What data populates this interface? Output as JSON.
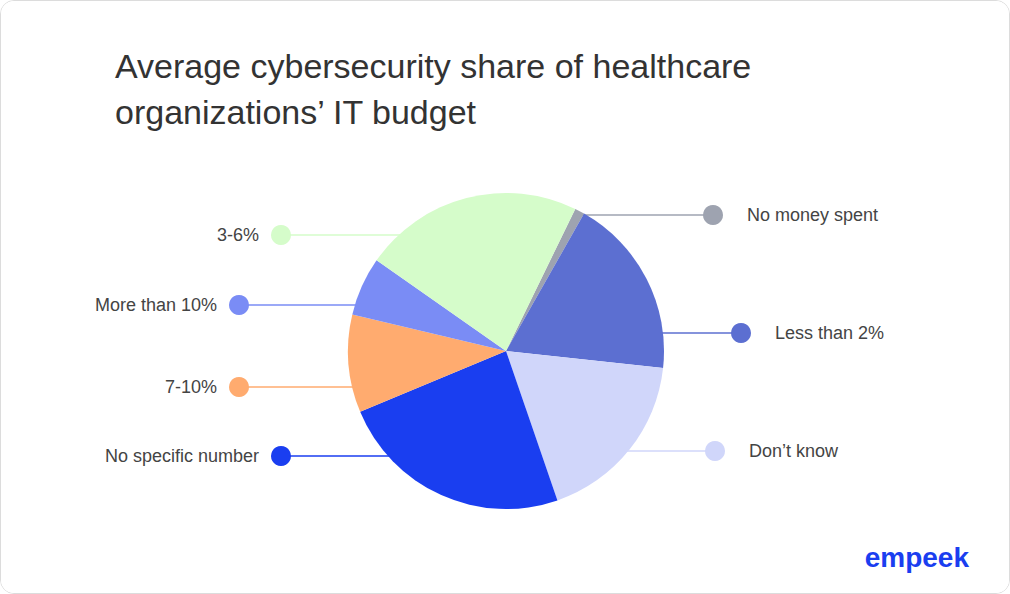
{
  "chart_data": {
    "type": "pie",
    "title": "Average cybersecurity share of healthcare organizations’ IT budget",
    "categories": [
      "No money spent",
      "Less than 2%",
      "Don’t know",
      "No specific number",
      "7-10%",
      "More than 10%",
      "3-6%"
    ],
    "values": [
      1,
      18.5,
      18,
      24,
      10,
      6,
      22.5
    ],
    "colors": [
      "#9ea3b0",
      "#5c6fd1",
      "#d0d6fa",
      "#1a3ef0",
      "#ffab6f",
      "#7a8cf5",
      "#d5fcca"
    ]
  },
  "logo_text": "empeek"
}
